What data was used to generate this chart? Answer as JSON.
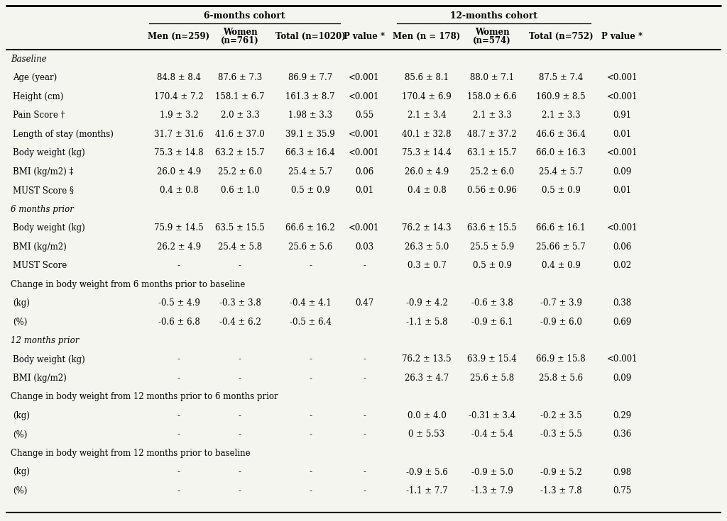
{
  "col_headers_line1": [
    "",
    "Men (n=259)",
    "Women",
    "Total (n=1020)",
    "P value *",
    "Men (n = 178)",
    "Women",
    "Total (n=752)",
    "P value *"
  ],
  "col_headers_line2": [
    "",
    "",
    "(n=761)",
    "",
    "",
    "",
    "(n=574)",
    "",
    ""
  ],
  "group1_label": "6-months cohort",
  "group2_label": "12-months cohort",
  "rows": [
    {
      "label": "Baseline",
      "style": "italic",
      "data": [
        "",
        "",
        "",
        "",
        "",
        "",
        "",
        ""
      ]
    },
    {
      "label": "Age (year)",
      "style": "normal",
      "data": [
        "84.8 ± 8.4",
        "87.6 ± 7.3",
        "86.9 ± 7.7",
        "<0.001",
        "85.6 ± 8.1",
        "88.0 ± 7.1",
        "87.5 ± 7.4",
        "<0.001"
      ]
    },
    {
      "label": "Height (cm)",
      "style": "normal",
      "data": [
        "170.4 ± 7.2",
        "158.1 ± 6.7",
        "161.3 ± 8.7",
        "<0.001",
        "170.4 ± 6.9",
        "158.0 ± 6.6",
        "160.9 ± 8.5",
        "<0.001"
      ]
    },
    {
      "label": "Pain Score †",
      "style": "normal",
      "data": [
        "1.9 ± 3.2",
        "2.0 ± 3.3",
        "1.98 ± 3.3",
        "0.55",
        "2.1 ± 3.4",
        "2.1 ± 3.3",
        "2.1 ± 3.3",
        "0.91"
      ]
    },
    {
      "label": "Length of stay (months)",
      "style": "normal",
      "data": [
        "31.7 ± 31.6",
        "41.6 ± 37.0",
        "39.1 ± 35.9",
        "<0.001",
        "40.1 ± 32.8",
        "48.7 ± 37.2",
        "46.6 ± 36.4",
        "0.01"
      ]
    },
    {
      "label": "Body weight (kg)",
      "style": "normal",
      "data": [
        "75.3 ± 14.8",
        "63.2 ± 15.7",
        "66.3 ± 16.4",
        "<0.001",
        "75.3 ± 14.4",
        "63.1 ± 15.7",
        "66.0 ± 16.3",
        "<0.001"
      ]
    },
    {
      "label": "BMI (kg/m2) ‡",
      "style": "normal",
      "data": [
        "26.0 ± 4.9",
        "25.2 ± 6.0",
        "25.4 ± 5.7",
        "0.06",
        "26.0 ± 4.9",
        "25.2 ± 6.0",
        "25.4 ± 5.7",
        "0.09"
      ]
    },
    {
      "label": "MUST Score §",
      "style": "normal",
      "data": [
        "0.4 ± 0.8",
        "0.6 ± 1.0",
        "0.5 ± 0.9",
        "0.01",
        "0.4 ± 0.8",
        "0.56 ± 0.96",
        "0.5 ± 0.9",
        "0.01"
      ]
    },
    {
      "label": "6 months prior",
      "style": "italic",
      "data": [
        "",
        "",
        "",
        "",
        "",
        "",
        "",
        ""
      ]
    },
    {
      "label": "Body weight (kg)",
      "style": "normal",
      "data": [
        "75.9 ± 14.5",
        "63.5 ± 15.5",
        "66.6 ± 16.2",
        "<0.001",
        "76.2 ± 14.3",
        "63.6 ± 15.5",
        "66.6 ± 16.1",
        "<0.001"
      ]
    },
    {
      "label": "BMI (kg/m2)",
      "style": "normal",
      "data": [
        "26.2 ± 4.9",
        "25.4 ± 5.8",
        "25.6 ± 5.6",
        "0.03",
        "26.3 ± 5.0",
        "25.5 ± 5.9",
        "25.66 ± 5.7",
        "0.06"
      ]
    },
    {
      "label": "MUST Score",
      "style": "normal",
      "data": [
        "-",
        "-",
        "-",
        "-",
        "0.3 ± 0.7",
        "0.5 ± 0.9",
        "0.4 ± 0.9",
        "0.02"
      ]
    },
    {
      "label": "Change in body weight from 6 months prior to baseline",
      "style": "section",
      "data": [
        "",
        "",
        "",
        "",
        "",
        "",
        "",
        ""
      ]
    },
    {
      "label": "(kg)",
      "style": "normal",
      "data": [
        "-0.5 ± 4.9",
        "-0.3 ± 3.8",
        "-0.4 ± 4.1",
        "0.47",
        "-0.9 ± 4.2",
        "-0.6 ± 3.8",
        "-0.7 ± 3.9",
        "0.38"
      ]
    },
    {
      "label": "(%)",
      "style": "normal",
      "data": [
        "-0.6 ± 6.8",
        "-0.4 ± 6.2",
        "-0.5 ± 6.4",
        "",
        "-1.1 ± 5.8",
        "-0.9 ± 6.1",
        "-0.9 ± 6.0",
        "0.69"
      ]
    },
    {
      "label": "12 months prior",
      "style": "italic",
      "data": [
        "",
        "",
        "",
        "",
        "",
        "",
        "",
        ""
      ]
    },
    {
      "label": "Body weight (kg)",
      "style": "normal",
      "data": [
        "-",
        "-",
        "-",
        "-",
        "76.2 ± 13.5",
        "63.9 ± 15.4",
        "66.9 ± 15.8",
        "<0.001"
      ]
    },
    {
      "label": "BMI (kg/m2)",
      "style": "normal",
      "data": [
        "-",
        "-",
        "-",
        "-",
        "26.3 ± 4.7",
        "25.6 ± 5.8",
        "25.8 ± 5.6",
        "0.09"
      ]
    },
    {
      "label": "Change in body weight from 12 months prior to 6 months prior",
      "style": "section",
      "data": [
        "",
        "",
        "",
        "",
        "",
        "",
        "",
        ""
      ]
    },
    {
      "label": "(kg)",
      "style": "normal",
      "data": [
        "-",
        "-",
        "-",
        "-",
        "0.0 ± 4.0",
        "-0.31 ± 3.4",
        "-0.2 ± 3.5",
        "0.29"
      ]
    },
    {
      "label": "(%)",
      "style": "normal",
      "data": [
        "-",
        "-",
        "-",
        "-",
        "0 ± 5.53",
        "-0.4 ± 5.4",
        "-0.3 ± 5.5",
        "0.36"
      ]
    },
    {
      "label": "Change in body weight from 12 months prior to baseline",
      "style": "section",
      "data": [
        "",
        "",
        "",
        "",
        "",
        "",
        "",
        ""
      ]
    },
    {
      "label": "(kg)",
      "style": "normal",
      "data": [
        "-",
        "-",
        "-",
        "-",
        "-0.9 ± 5.6",
        "-0.9 ± 5.0",
        "-0.9 ± 5.2",
        "0.98"
      ]
    },
    {
      "label": "(%)",
      "style": "normal",
      "data": [
        "-",
        "-",
        "-",
        "-",
        "-1.1 ± 7.7",
        "-1.3 ± 7.9",
        "-1.3 ± 7.8",
        "0.75"
      ]
    }
  ],
  "font_size": 8.5,
  "header_font_size": 8.8,
  "bg_color": "#f5f5f0",
  "text_color": "black",
  "line_color": "black"
}
